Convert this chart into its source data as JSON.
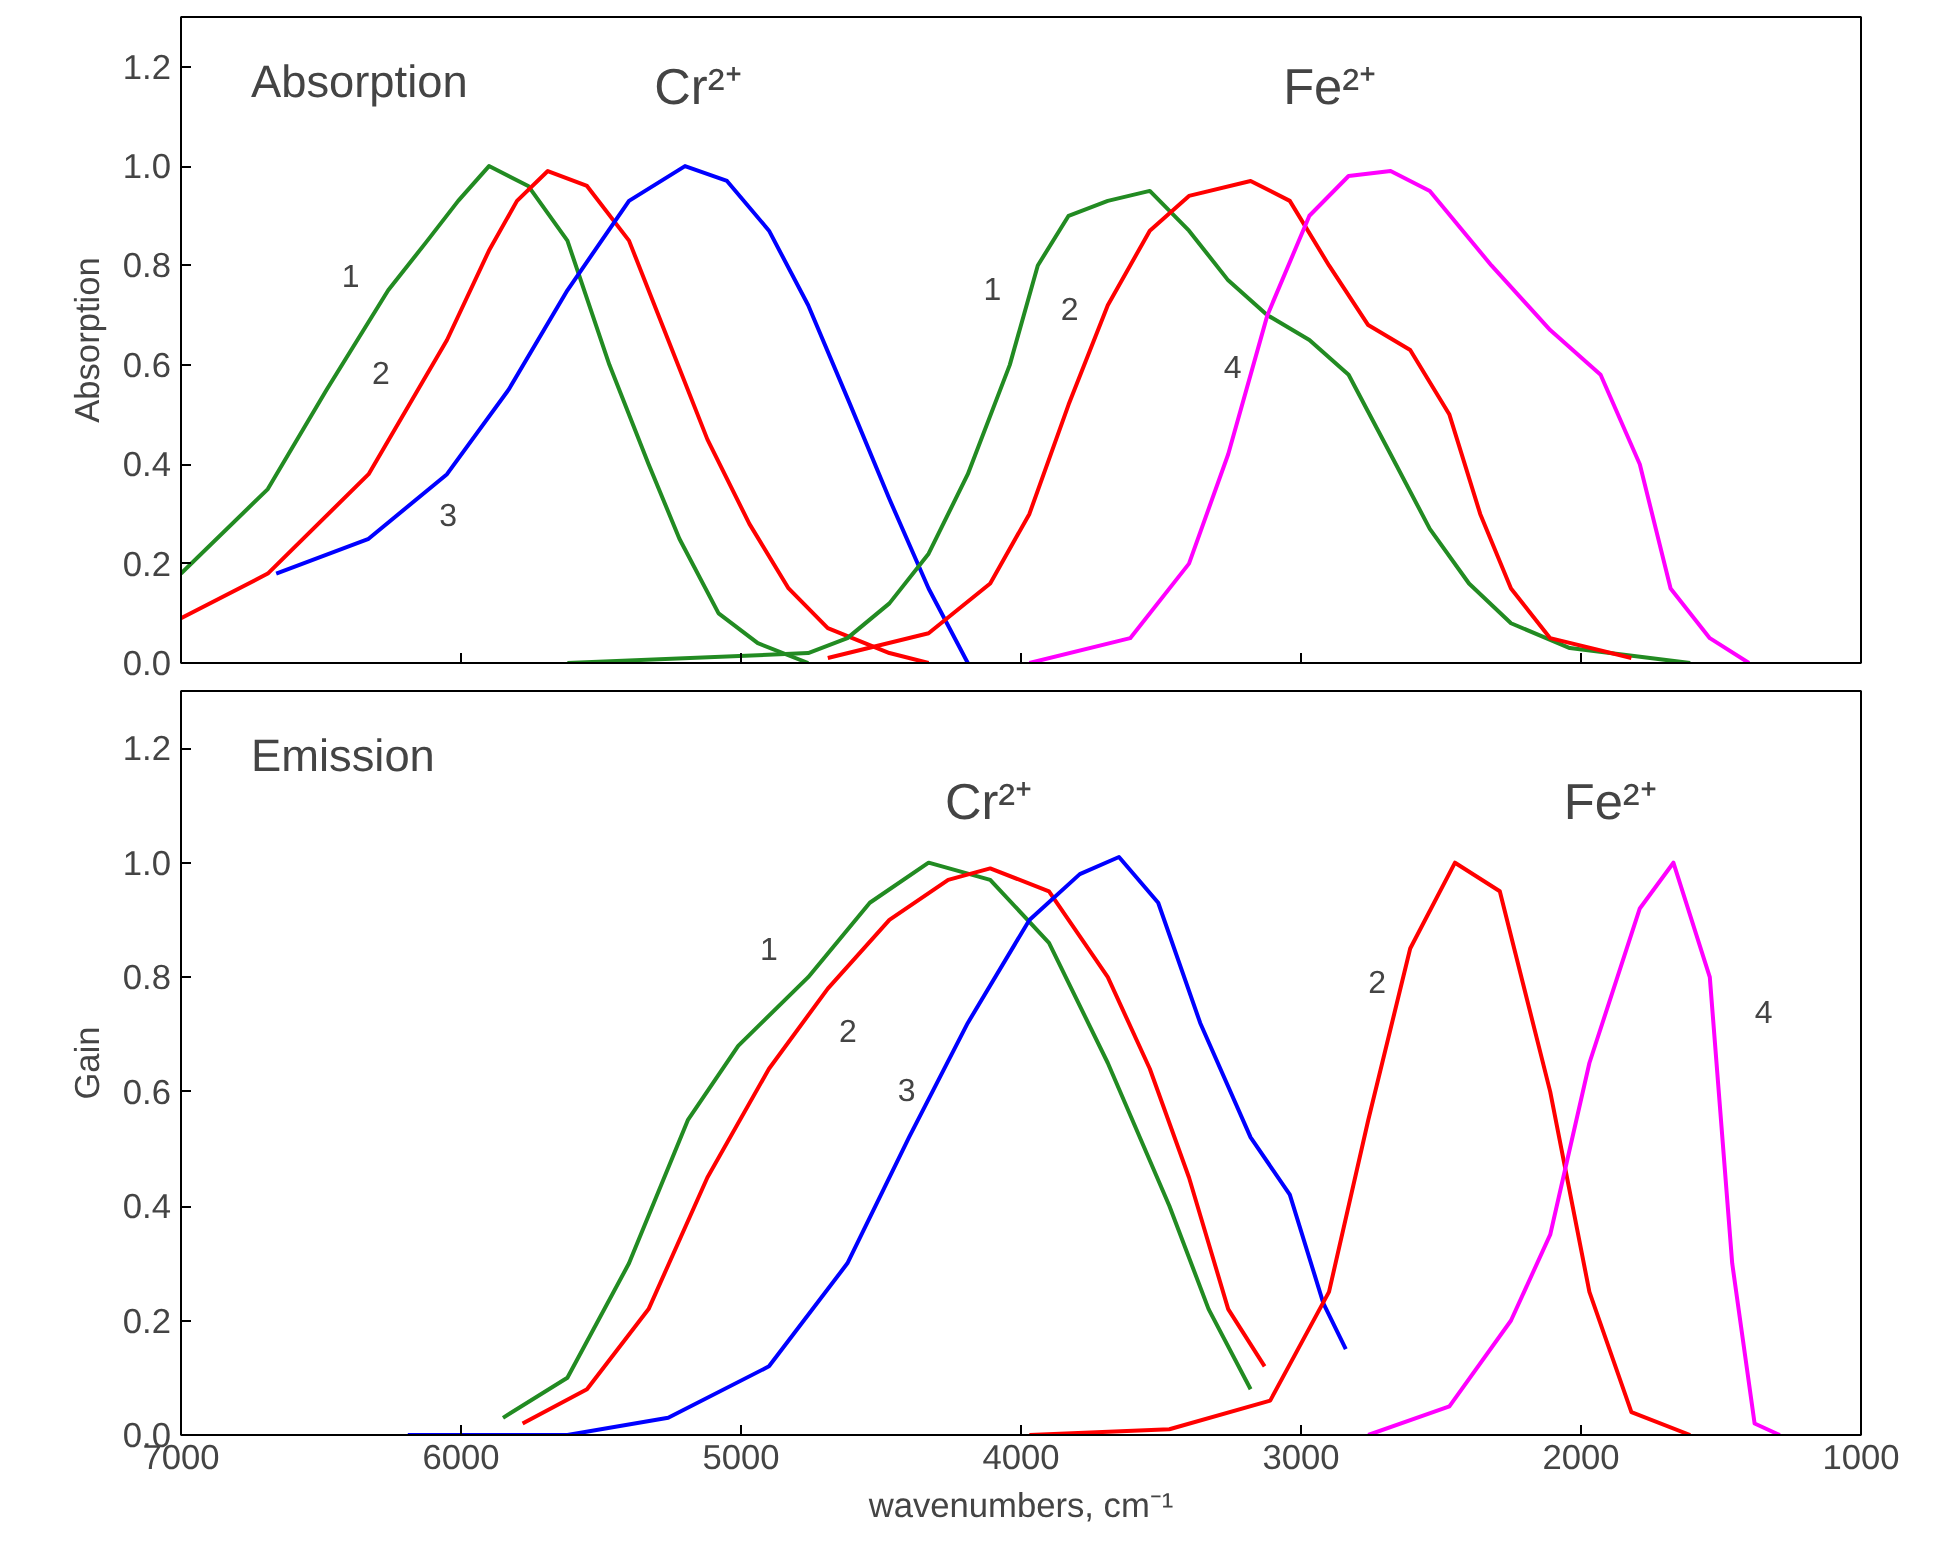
{
  "chart_data": [
    {
      "type": "line",
      "title": "Absorption",
      "ylabel": "Absorption",
      "xlim": [
        7000,
        1000
      ],
      "ylim": [
        0,
        1.3
      ],
      "tick_labels": "y",
      "line_style": "solid",
      "xticks": [
        7000,
        6000,
        5000,
        4000,
        3000,
        2000,
        1000
      ],
      "yticks": [
        {
          "value": 0,
          "label": "0.0"
        },
        {
          "value": 0.2,
          "label": "0.2"
        },
        {
          "value": 0.4,
          "label": "0.4"
        },
        {
          "value": 0.6,
          "label": "0.6"
        },
        {
          "value": 0.8,
          "label": "0.8"
        },
        {
          "value": 1,
          "label": "1.0"
        },
        {
          "value": 1.2,
          "label": "1.2"
        }
      ],
      "series": [
        {
          "color": "#228b22",
          "x": [
            7000,
            6690,
            6480,
            6260,
            6120,
            6010,
            5900,
            5760,
            5620,
            5470,
            5330,
            5220,
            5080,
            4940,
            4760
          ],
          "values": [
            0.18,
            0.35,
            0.55,
            0.75,
            0.85,
            0.93,
            1.0,
            0.96,
            0.85,
            0.6,
            0.4,
            0.25,
            0.1,
            0.04,
            0.0
          ]
        },
        {
          "color": "#ff0000",
          "x": [
            7000,
            6690,
            6330,
            6050,
            5900,
            5800,
            5690,
            5550,
            5400,
            5260,
            5120,
            4970,
            4830,
            4690,
            4470,
            4330
          ],
          "values": [
            0.09,
            0.18,
            0.38,
            0.65,
            0.83,
            0.93,
            0.99,
            0.96,
            0.85,
            0.65,
            0.45,
            0.28,
            0.15,
            0.07,
            0.02,
            0.0
          ]
        },
        {
          "color": "#0000ff",
          "x": [
            6660,
            6330,
            6050,
            5830,
            5620,
            5400,
            5200,
            5050,
            4900,
            4760,
            4610,
            4470,
            4330,
            4190
          ],
          "values": [
            0.18,
            0.25,
            0.38,
            0.55,
            0.75,
            0.93,
            1.0,
            0.97,
            0.87,
            0.72,
            0.52,
            0.33,
            0.15,
            0.0
          ]
        },
        {
          "color": "#228b22",
          "x": [
            5620,
            4760,
            4620,
            4470,
            4330,
            4190,
            4040,
            3940,
            3830,
            3690,
            3540,
            3400,
            3260,
            3120,
            2970,
            2830,
            2680,
            2540,
            2400,
            2250,
            2040,
            1610
          ],
          "values": [
            0.0,
            0.02,
            0.05,
            0.12,
            0.22,
            0.38,
            0.6,
            0.8,
            0.9,
            0.93,
            0.95,
            0.87,
            0.77,
            0.7,
            0.65,
            0.58,
            0.42,
            0.27,
            0.16,
            0.08,
            0.03,
            0.0
          ]
        },
        {
          "color": "#ff0000",
          "x": [
            4690,
            4330,
            4110,
            3970,
            3830,
            3690,
            3540,
            3400,
            3180,
            3040,
            2900,
            2760,
            2610,
            2470,
            2360,
            2250,
            2110,
            1820
          ],
          "values": [
            0.01,
            0.06,
            0.16,
            0.3,
            0.52,
            0.72,
            0.87,
            0.94,
            0.97,
            0.93,
            0.8,
            0.68,
            0.63,
            0.5,
            0.3,
            0.15,
            0.05,
            0.01
          ]
        },
        {
          "color": "#ff00ff",
          "x": [
            3970,
            3610,
            3400,
            3260,
            3120,
            2970,
            2830,
            2680,
            2540,
            2320,
            2110,
            1930,
            1790,
            1680,
            1540,
            1400
          ],
          "values": [
            0.0,
            0.05,
            0.2,
            0.42,
            0.7,
            0.9,
            0.98,
            0.99,
            0.95,
            0.8,
            0.67,
            0.58,
            0.4,
            0.15,
            0.05,
            0.0
          ]
        }
      ],
      "annotations": [
        "Cr²⁺",
        "Fe²⁺",
        "1",
        "2",
        "3",
        "1",
        "2",
        "4"
      ]
    },
    {
      "type": "line",
      "title": "Emission",
      "ylabel": "Gain",
      "xlabel": "wavenumbers, cm⁻¹",
      "xlim": [
        7000,
        1000
      ],
      "ylim": [
        0,
        1.3
      ],
      "line_style": "solid",
      "xticks": [
        7000,
        6000,
        5000,
        4000,
        3000,
        2000,
        1000
      ],
      "yticks": [
        {
          "value": 0,
          "label": "0.0"
        },
        {
          "value": 0.2,
          "label": "0.2"
        },
        {
          "value": 0.4,
          "label": "0.4"
        },
        {
          "value": 0.6,
          "label": "0.6"
        },
        {
          "value": 0.8,
          "label": "0.8"
        },
        {
          "value": 1,
          "label": "1.0"
        },
        {
          "value": 1.2,
          "label": "1.2"
        }
      ],
      "series": [
        {
          "color": "#228b22",
          "x": [
            5850,
            5620,
            5400,
            5190,
            5010,
            4760,
            4540,
            4330,
            4110,
            3900,
            3690,
            3470,
            3330,
            3180
          ],
          "values": [
            0.03,
            0.1,
            0.3,
            0.55,
            0.68,
            0.8,
            0.93,
            1.0,
            0.97,
            0.86,
            0.65,
            0.4,
            0.22,
            0.08
          ]
        },
        {
          "color": "#ff0000",
          "x": [
            5780,
            5550,
            5330,
            5120,
            4900,
            4690,
            4470,
            4260,
            4110,
            3900,
            3690,
            3540,
            3400,
            3260,
            3130
          ],
          "values": [
            0.02,
            0.08,
            0.22,
            0.45,
            0.64,
            0.78,
            0.9,
            0.97,
            0.99,
            0.95,
            0.8,
            0.64,
            0.45,
            0.22,
            0.12
          ]
        },
        {
          "color": "#0000ff",
          "x": [
            6190,
            5620,
            5260,
            4900,
            4620,
            4400,
            4190,
            3970,
            3790,
            3650,
            3510,
            3360,
            3180,
            3040,
            2920,
            2840
          ],
          "values": [
            0.0,
            0.0,
            0.03,
            0.12,
            0.3,
            0.52,
            0.72,
            0.9,
            0.98,
            1.01,
            0.93,
            0.72,
            0.52,
            0.42,
            0.23,
            0.15
          ]
        },
        {
          "color": "#ff0000",
          "x": [
            3970,
            3470,
            3110,
            2900,
            2760,
            2610,
            2450,
            2290,
            2110,
            1970,
            1820,
            1610
          ],
          "values": [
            0.0,
            0.01,
            0.06,
            0.25,
            0.55,
            0.85,
            1.0,
            0.95,
            0.6,
            0.25,
            0.04,
            0.0
          ]
        },
        {
          "color": "#ff00ff",
          "x": [
            2760,
            2470,
            2250,
            2110,
            1970,
            1790,
            1670,
            1540,
            1460,
            1380,
            1290
          ],
          "values": [
            0.0,
            0.05,
            0.2,
            0.35,
            0.65,
            0.92,
            1.0,
            0.8,
            0.3,
            0.02,
            0.0
          ]
        }
      ],
      "annotations": [
        "Cr²⁺",
        "Fe²⁺",
        "1",
        "2",
        "3",
        "2",
        "4"
      ]
    }
  ]
}
